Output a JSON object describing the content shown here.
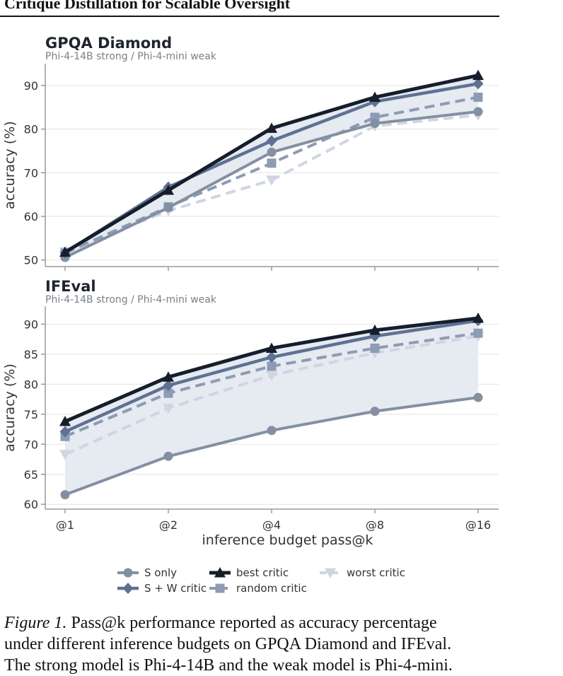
{
  "header": {
    "title": "Critique Distillation for Scalable Oversight"
  },
  "caption": {
    "label": "Figure 1.",
    "line1": "Pass@k performance reported as accuracy percentage",
    "line2": "under different inference budgets on GPQA Diamond and IFEval.",
    "line3": "The strong model is Phi-4-14B and the weak model is Phi-4-mini."
  },
  "colors": {
    "s_only": "#8390a2",
    "sw_critic": "#5f7193",
    "best_critic": "#161d2b",
    "random_critic": "#8d9bb3",
    "worst_critic": "#cfd6e2",
    "band": "#e6eaf1",
    "grid": "#e3e3e3",
    "axis": "#9a9a9a",
    "text": "#333333"
  },
  "legend": {
    "entries": [
      "S only",
      "best critic",
      "worst critic",
      "S + W critic",
      "random critic"
    ]
  },
  "chart_data": [
    {
      "type": "line",
      "title": "GPQA Diamond",
      "subtitle": "Phi-4-14B strong / Phi-4-mini weak",
      "xlabel": "",
      "ylabel": "accuracy (%)",
      "categories": [
        "@1",
        "@2",
        "@4",
        "@8",
        "@16"
      ],
      "ylim": [
        48.5,
        95
      ],
      "yticks": [
        50,
        60,
        70,
        80,
        90
      ],
      "series": [
        {
          "name": "S only",
          "values": [
            50.6,
            62.0,
            74.7,
            81.3,
            84.0
          ]
        },
        {
          "name": "S + W critic",
          "values": [
            51.7,
            66.7,
            77.3,
            86.3,
            90.4
          ]
        },
        {
          "name": "best critic",
          "values": [
            51.8,
            66.0,
            80.2,
            87.3,
            92.3
          ]
        },
        {
          "name": "random critic",
          "values": [
            51.6,
            62.2,
            72.2,
            82.7,
            87.3
          ]
        },
        {
          "name": "worst critic",
          "values": [
            51.9,
            61.3,
            68.3,
            80.7,
            83.2
          ]
        }
      ]
    },
    {
      "type": "line",
      "title": "IFEval",
      "subtitle": "Phi-4-14B strong / Phi-4-mini weak",
      "xlabel": "inference budget pass@k",
      "ylabel": "accuracy (%)",
      "categories": [
        "@1",
        "@2",
        "@4",
        "@8",
        "@16"
      ],
      "ylim": [
        59.2,
        93
      ],
      "yticks": [
        60,
        65,
        70,
        75,
        80,
        85,
        90
      ],
      "series": [
        {
          "name": "S only",
          "values": [
            61.6,
            68.0,
            72.3,
            75.5,
            77.8
          ]
        },
        {
          "name": "S + W critic",
          "values": [
            72.1,
            79.8,
            84.5,
            88.0,
            90.6
          ]
        },
        {
          "name": "best critic",
          "values": [
            73.8,
            81.2,
            86.0,
            89.0,
            91.0
          ]
        },
        {
          "name": "random critic",
          "values": [
            71.3,
            78.5,
            83.0,
            86.0,
            88.5
          ]
        },
        {
          "name": "worst critic",
          "values": [
            68.3,
            76.0,
            81.5,
            85.2,
            88.0
          ]
        }
      ]
    }
  ]
}
